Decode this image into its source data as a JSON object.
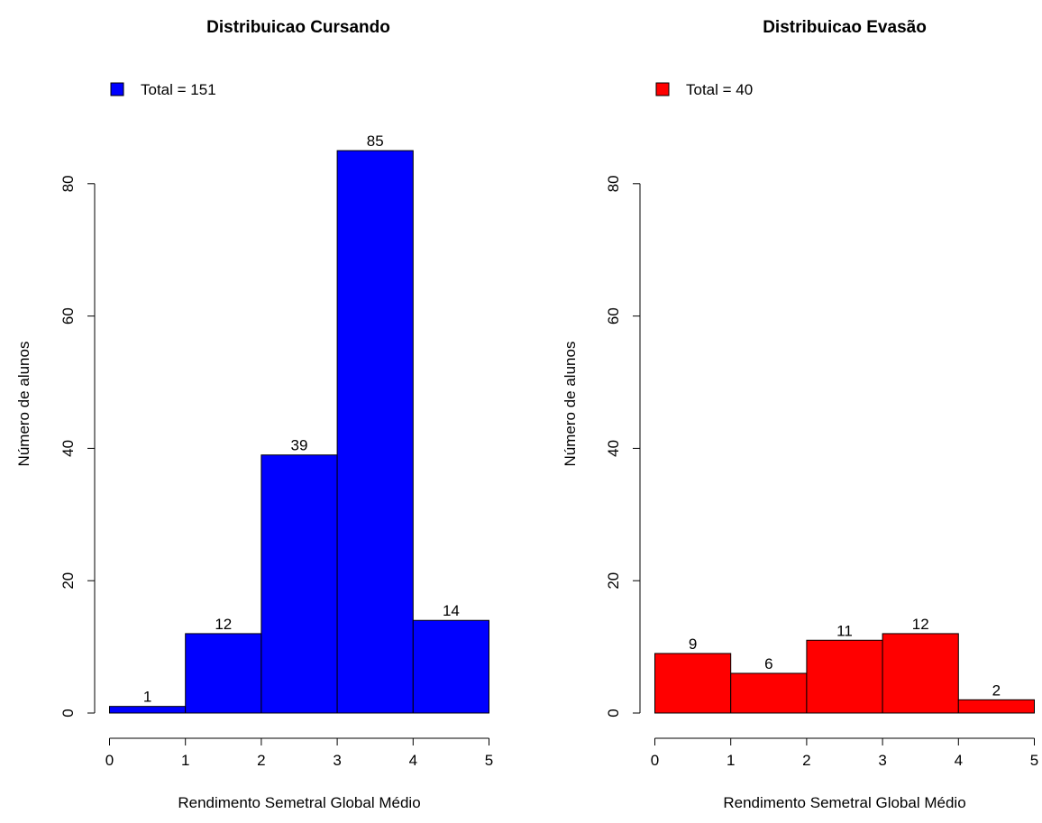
{
  "chart_data": [
    {
      "type": "bar",
      "title": "Distribuicao Cursando",
      "xlabel": "Rendimento Semetral Global Médio",
      "ylabel": "Número de alunos",
      "legend": {
        "label": "Total = 151",
        "placement": "top-left"
      },
      "color": "#0000ff",
      "bins": [
        [
          0,
          1
        ],
        [
          1,
          2
        ],
        [
          2,
          3
        ],
        [
          3,
          4
        ],
        [
          4,
          5
        ]
      ],
      "values": [
        1,
        12,
        39,
        85,
        14
      ],
      "xlim": [
        0,
        5
      ],
      "ylim": [
        0,
        85
      ],
      "xticks": [
        0,
        1,
        2,
        3,
        4,
        5
      ],
      "yticks": [
        0,
        20,
        40,
        60,
        80
      ],
      "grid": false
    },
    {
      "type": "bar",
      "title": "Distribuicao Evasão",
      "xlabel": "Rendimento Semetral Global Médio",
      "ylabel": "Número de alunos",
      "legend": {
        "label": "Total = 40",
        "placement": "top-left"
      },
      "color": "#ff0000",
      "bins": [
        [
          0,
          1
        ],
        [
          1,
          2
        ],
        [
          2,
          3
        ],
        [
          3,
          4
        ],
        [
          4,
          5
        ]
      ],
      "values": [
        9,
        6,
        11,
        12,
        2
      ],
      "xlim": [
        0,
        5
      ],
      "ylim": [
        0,
        85
      ],
      "xticks": [
        0,
        1,
        2,
        3,
        4,
        5
      ],
      "yticks": [
        0,
        20,
        40,
        60,
        80
      ],
      "grid": false
    }
  ]
}
